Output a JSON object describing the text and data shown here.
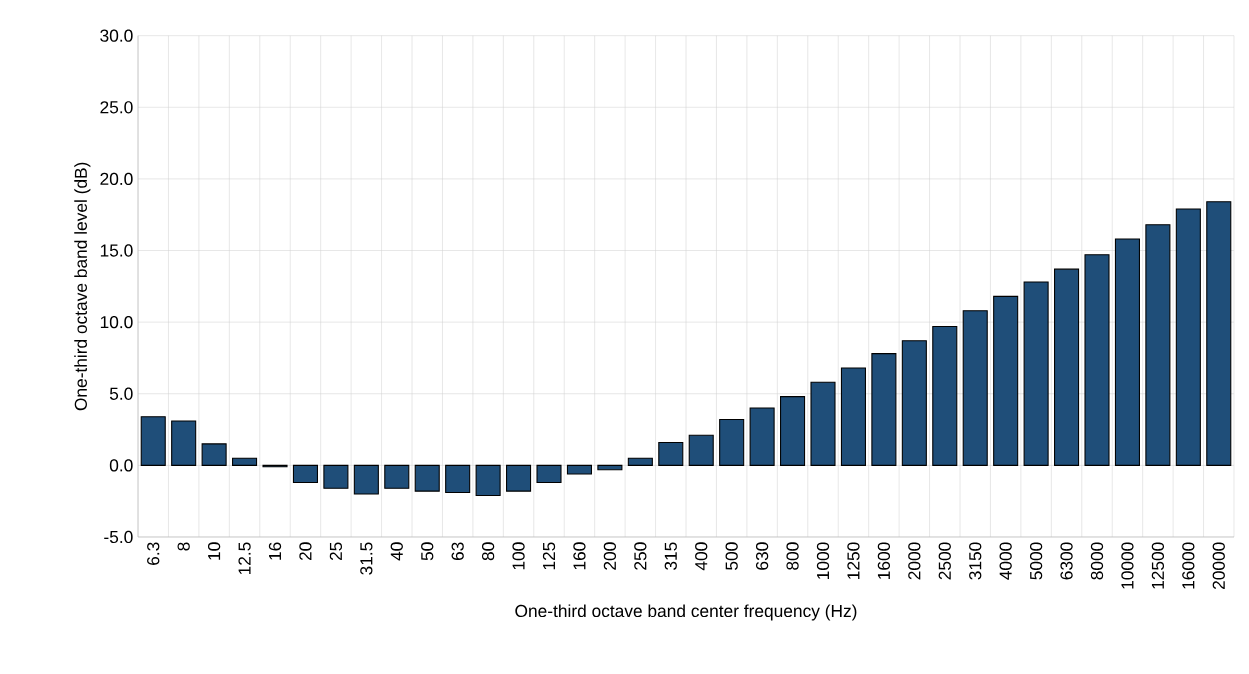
{
  "chart_data": {
    "type": "bar",
    "xlabel": "One-third octave band center frequency (Hz)",
    "ylabel": "One-third octave band level (dB)",
    "categories": [
      "6.3",
      "8",
      "10",
      "12.5",
      "16",
      "20",
      "25",
      "31.5",
      "40",
      "50",
      "63",
      "80",
      "100",
      "125",
      "160",
      "200",
      "250",
      "315",
      "400",
      "500",
      "630",
      "800",
      "1000",
      "1250",
      "1600",
      "2000",
      "2500",
      "3150",
      "4000",
      "5000",
      "6300",
      "8000",
      "10000",
      "12500",
      "16000",
      "20000"
    ],
    "values": [
      3.4,
      3.1,
      1.5,
      0.5,
      -0.1,
      -1.2,
      -1.6,
      -2.0,
      -1.6,
      -1.8,
      -1.9,
      -2.1,
      -1.8,
      -1.2,
      -0.6,
      -0.3,
      0.5,
      1.6,
      2.1,
      3.2,
      4.0,
      4.8,
      5.8,
      6.8,
      7.8,
      8.7,
      9.7,
      10.8,
      11.8,
      12.8,
      13.7,
      14.7,
      15.8,
      16.8,
      17.9,
      18.4
    ],
    "color": "#1f4e79",
    "ylim": [
      -5,
      30
    ],
    "yticks": [
      {
        "value": -5,
        "label": "-5.0"
      },
      {
        "value": 0,
        "label": "0.0"
      },
      {
        "value": 5,
        "label": "5.0"
      },
      {
        "value": 10,
        "label": "10.0"
      },
      {
        "value": 15,
        "label": "15.0"
      },
      {
        "value": 20,
        "label": "20.0"
      },
      {
        "value": 25,
        "label": "25.0"
      },
      {
        "value": 30,
        "label": "30.0"
      }
    ],
    "grid": true
  }
}
